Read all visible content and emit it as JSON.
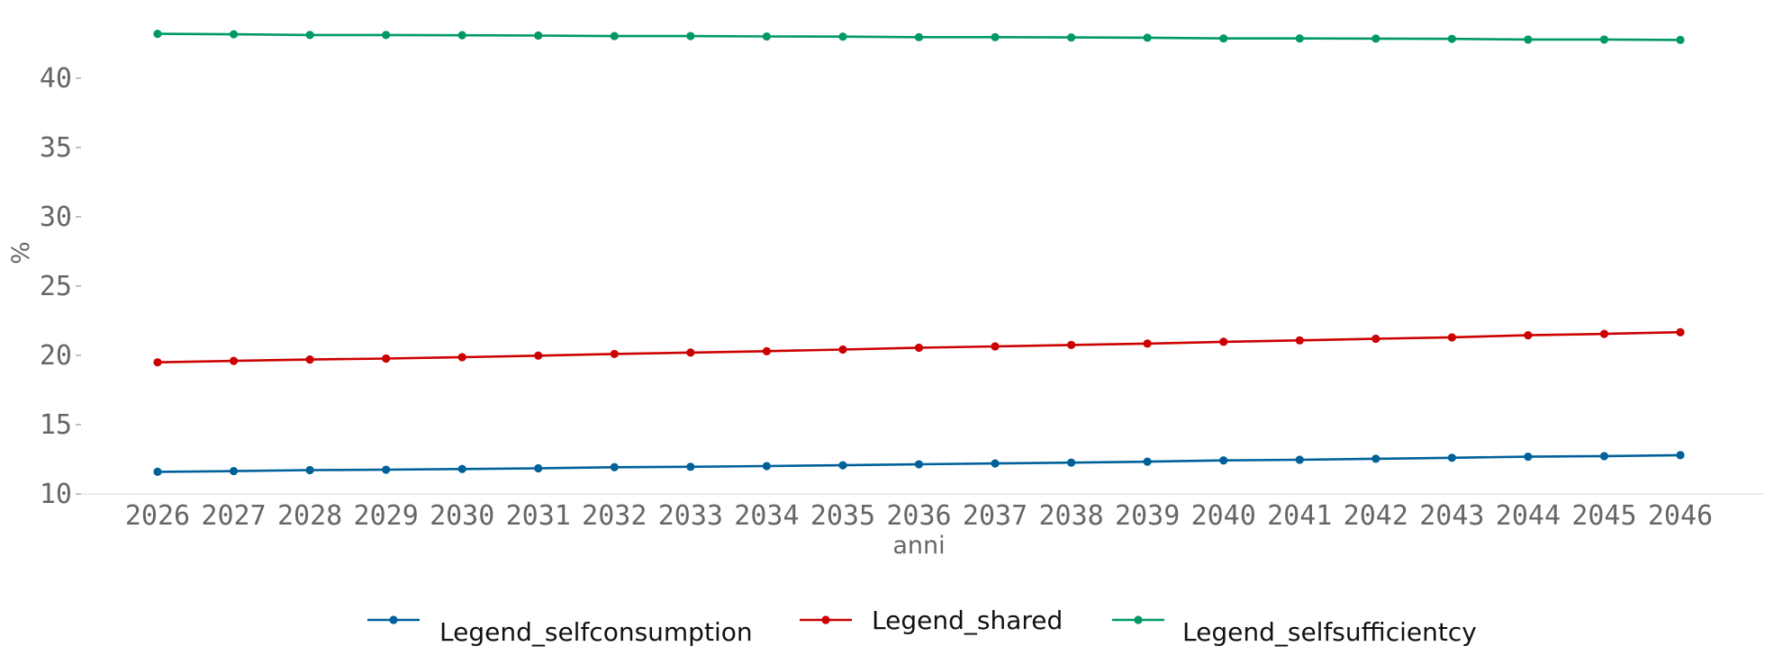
{
  "chart_data": {
    "type": "line",
    "title": "",
    "xlabel": "anni",
    "ylabel": "%",
    "x": [
      "2026",
      "2027",
      "2028",
      "2029",
      "2030",
      "2031",
      "2032",
      "2033",
      "2034",
      "2035",
      "2036",
      "2037",
      "2038",
      "2039",
      "2040",
      "2041",
      "2042",
      "2043",
      "2044",
      "2045",
      "2046"
    ],
    "ylim": [
      10,
      43.5
    ],
    "yticks": [
      10,
      15,
      20,
      25,
      30,
      35,
      40
    ],
    "grid": false,
    "legend_position": "bottom",
    "series": [
      {
        "name": "Legend_selfconsumption",
        "color": "#006199",
        "values": [
          11.6,
          11.65,
          11.72,
          11.75,
          11.8,
          11.85,
          11.93,
          11.96,
          12.01,
          12.07,
          12.14,
          12.2,
          12.26,
          12.33,
          12.42,
          12.47,
          12.54,
          12.61,
          12.69,
          12.73,
          12.8
        ]
      },
      {
        "name": "Legend_shared",
        "color": "#cc0000",
        "values": [
          19.5,
          19.6,
          19.7,
          19.77,
          19.87,
          19.98,
          20.1,
          20.2,
          20.3,
          20.42,
          20.55,
          20.65,
          20.75,
          20.85,
          20.98,
          21.08,
          21.2,
          21.3,
          21.45,
          21.55,
          21.67
        ]
      },
      {
        "name": "Legend_selfsufficientcy",
        "color": "#009966",
        "values": [
          43.2,
          43.17,
          43.12,
          43.12,
          43.1,
          43.08,
          43.04,
          43.04,
          43.01,
          43.0,
          42.96,
          42.96,
          42.94,
          42.92,
          42.87,
          42.87,
          42.86,
          42.84,
          42.79,
          42.79,
          42.76
        ]
      }
    ]
  }
}
